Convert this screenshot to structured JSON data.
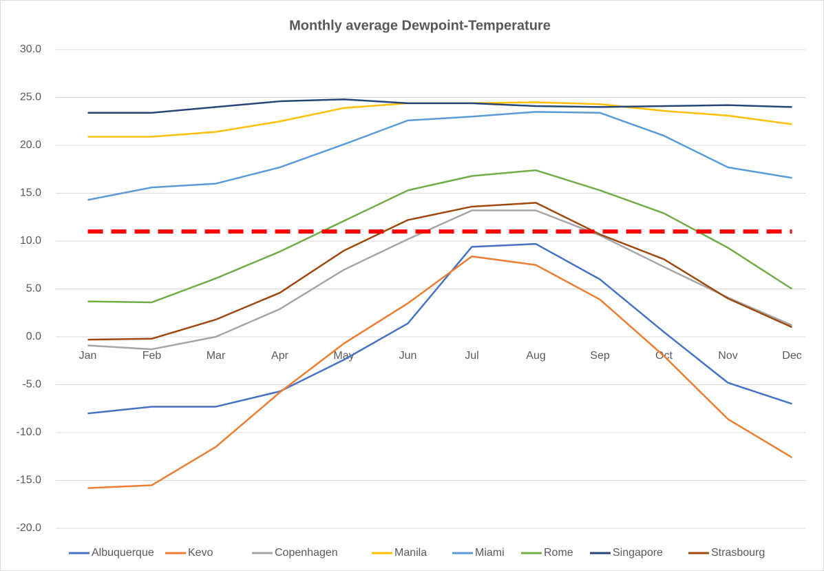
{
  "chart_data": {
    "type": "line",
    "title": "Monthly average Dewpoint-Temperature",
    "categories": [
      "Jan",
      "Feb",
      "Mar",
      "Apr",
      "May",
      "Jun",
      "Jul",
      "Aug",
      "Sep",
      "Oct",
      "Nov",
      "Dec"
    ],
    "series": [
      {
        "name": "Albuquerque",
        "color": "#4472c4",
        "values": [
          -8.0,
          -7.3,
          -7.3,
          -5.7,
          -2.4,
          1.4,
          9.4,
          9.7,
          6.0,
          0.5,
          -4.8,
          -7.0
        ]
      },
      {
        "name": "Kevo",
        "color": "#ed7d31",
        "values": [
          -15.8,
          -15.5,
          -11.5,
          -5.8,
          -0.7,
          3.5,
          8.4,
          7.5,
          3.9,
          -2.0,
          -8.6,
          -12.6
        ]
      },
      {
        "name": "Copenhagen",
        "color": "#a5a5a5",
        "values": [
          -0.9,
          -1.3,
          0.0,
          2.9,
          7.0,
          10.2,
          13.2,
          13.2,
          10.6,
          7.3,
          4.1,
          1.2
        ]
      },
      {
        "name": "Manila",
        "color": "#ffc000",
        "values": [
          20.9,
          20.9,
          21.4,
          22.5,
          23.9,
          24.4,
          24.4,
          24.5,
          24.3,
          23.6,
          23.1,
          22.2
        ]
      },
      {
        "name": "Miami",
        "color": "#5b9bd5",
        "values": [
          14.3,
          15.6,
          16.0,
          17.7,
          20.1,
          22.6,
          23.0,
          23.5,
          23.4,
          21.0,
          17.7,
          16.6
        ]
      },
      {
        "name": "Rome",
        "color": "#70ad47",
        "values": [
          3.7,
          3.6,
          6.1,
          8.9,
          12.1,
          15.3,
          16.8,
          17.4,
          15.3,
          12.9,
          9.3,
          5.0
        ]
      },
      {
        "name": "Singapore",
        "color": "#264478",
        "values": [
          23.4,
          23.4,
          24.0,
          24.6,
          24.8,
          24.4,
          24.4,
          24.1,
          24.0,
          24.1,
          24.2,
          24.0
        ]
      },
      {
        "name": "Strasbourg",
        "color": "#9e480e",
        "values": [
          -0.3,
          -0.2,
          1.8,
          4.6,
          9.0,
          12.2,
          13.6,
          14.0,
          10.7,
          8.1,
          4.0,
          1.0
        ]
      }
    ],
    "reference_line": {
      "value": 11,
      "color": "#ff0000"
    },
    "ylim": [
      -20,
      30
    ],
    "yticks": [
      {
        "value": -20,
        "label": "-20.0"
      },
      {
        "value": -15,
        "label": "-15.0"
      },
      {
        "value": -10,
        "label": "-10.0"
      },
      {
        "value": -5,
        "label": "-5.0"
      },
      {
        "value": 0,
        "label": "0.0"
      },
      {
        "value": 5,
        "label": "5.0"
      },
      {
        "value": 10,
        "label": "10.0"
      },
      {
        "value": 15,
        "label": "15.0"
      },
      {
        "value": 20,
        "label": "20.0"
      },
      {
        "value": 25,
        "label": "25.0"
      },
      {
        "value": 30,
        "label": "30.0"
      }
    ],
    "grid": true,
    "legend": "bottom"
  }
}
